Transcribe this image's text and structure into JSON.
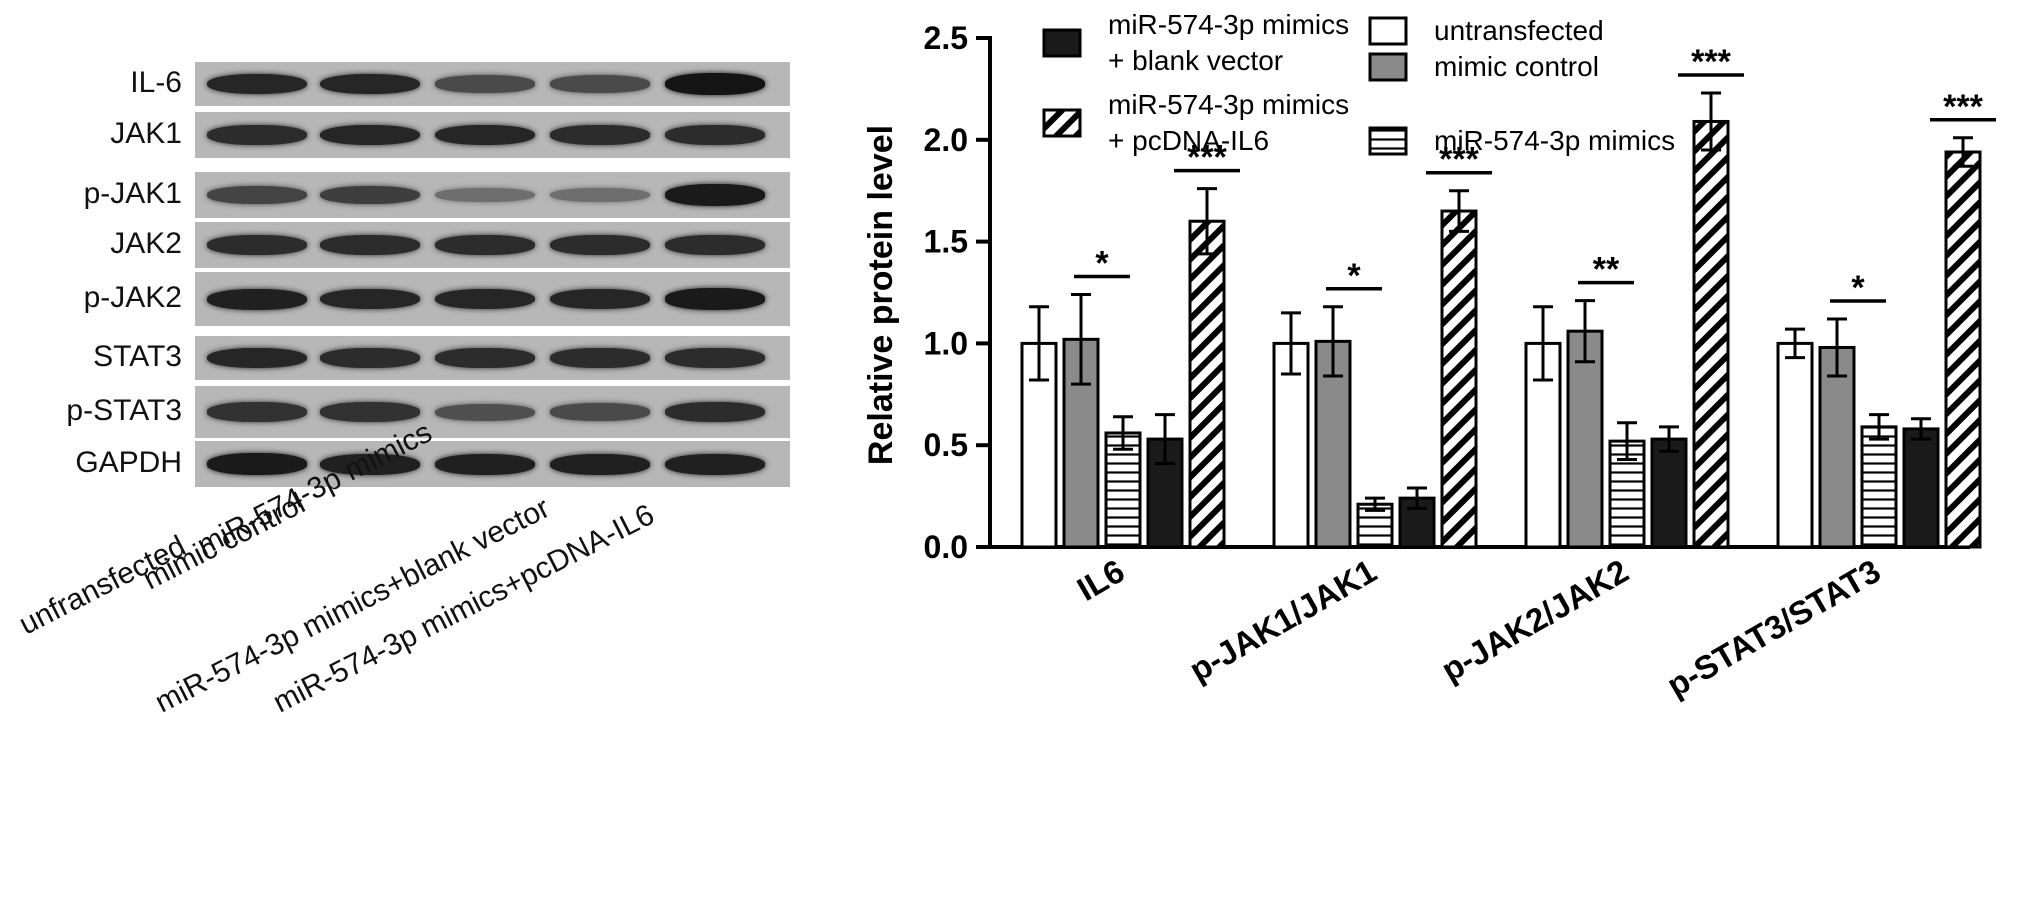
{
  "blot": {
    "proteins": [
      "IL-6",
      "JAK1",
      "p-JAK1",
      "JAK2",
      "p-JAK2",
      "STAT3",
      "p-STAT3",
      "GAPDH"
    ],
    "lanes": [
      "unfransfected",
      "mimic control",
      "miR-574-3p mimics",
      "miR-574-3p mimics+blank vector",
      "miR-574-3p mimics+pcDNA-IL6"
    ],
    "band_intensity": [
      [
        0.85,
        0.85,
        0.55,
        0.55,
        1.0
      ],
      [
        0.8,
        0.85,
        0.85,
        0.8,
        0.8
      ],
      [
        0.6,
        0.65,
        0.25,
        0.25,
        0.95
      ],
      [
        0.8,
        0.8,
        0.8,
        0.8,
        0.8
      ],
      [
        0.9,
        0.85,
        0.85,
        0.85,
        0.95
      ],
      [
        0.85,
        0.8,
        0.8,
        0.8,
        0.8
      ],
      [
        0.75,
        0.75,
        0.5,
        0.55,
        0.8
      ],
      [
        0.95,
        0.9,
        0.9,
        0.9,
        0.9
      ]
    ]
  },
  "chart_data": {
    "type": "bar",
    "categories": [
      "IL6",
      "p-JAK1/JAK1",
      "p-JAK2/JAK2",
      "p-STAT3/STAT3"
    ],
    "ylabel": "Relative protein level",
    "xlabel": "",
    "ylim": [
      0,
      2.5
    ],
    "yticks": [
      "0.0",
      "0.5",
      "1.0",
      "1.5",
      "2.0",
      "2.5"
    ],
    "series": [
      {
        "name": "untransfected",
        "fill": "white",
        "values": [
          1.0,
          1.0,
          1.0,
          1.0
        ],
        "errors": [
          0.18,
          0.15,
          0.18,
          0.07
        ]
      },
      {
        "name": "mimic control",
        "fill": "gray",
        "values": [
          1.02,
          1.01,
          1.06,
          0.98
        ],
        "errors": [
          0.22,
          0.17,
          0.15,
          0.14
        ]
      },
      {
        "name": "miR-574-3p mimics",
        "fill": "horizontal-stripes",
        "values": [
          0.56,
          0.21,
          0.52,
          0.59
        ],
        "errors": [
          0.08,
          0.03,
          0.09,
          0.06
        ]
      },
      {
        "name": "miR-574-3p mimics\n+ blank vector",
        "fill": "black",
        "values": [
          0.53,
          0.24,
          0.53,
          0.58
        ],
        "errors": [
          0.12,
          0.05,
          0.06,
          0.05
        ]
      },
      {
        "name": "miR-574-3p mimics\n+ pcDNA-IL6",
        "fill": "diagonal-stripes",
        "values": [
          1.6,
          1.65,
          2.09,
          1.94
        ],
        "errors": [
          0.16,
          0.1,
          0.14,
          0.07
        ]
      }
    ],
    "annotations": [
      {
        "category": 0,
        "from_series": 1,
        "to_series": 2,
        "text": "*"
      },
      {
        "category": 0,
        "from_series": 4,
        "to_series": 4,
        "text": "***"
      },
      {
        "category": 1,
        "from_series": 1,
        "to_series": 2,
        "text": "*"
      },
      {
        "category": 1,
        "from_series": 4,
        "to_series": 4,
        "text": "***"
      },
      {
        "category": 2,
        "from_series": 1,
        "to_series": 2,
        "text": "**"
      },
      {
        "category": 2,
        "from_series": 4,
        "to_series": 4,
        "text": "***"
      },
      {
        "category": 3,
        "from_series": 1,
        "to_series": 2,
        "text": "*"
      },
      {
        "category": 3,
        "from_series": 4,
        "to_series": 4,
        "text": "***"
      }
    ],
    "legend_position": "top"
  },
  "colors": {
    "gray_bar": "#8a8a8a",
    "black_bar": "#1a1a1a",
    "axis": "#000000"
  }
}
